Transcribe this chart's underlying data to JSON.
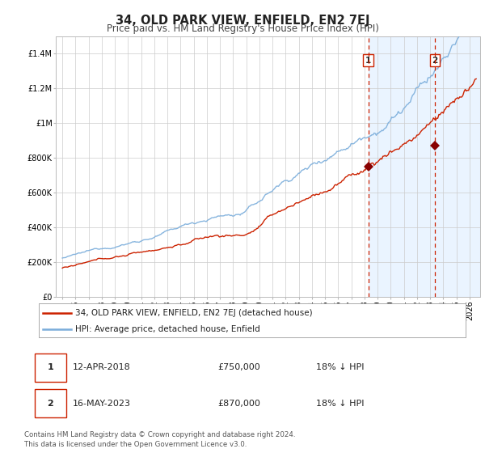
{
  "title": "34, OLD PARK VIEW, ENFIELD, EN2 7EJ",
  "subtitle": "Price paid vs. HM Land Registry's House Price Index (HPI)",
  "xlim": [
    1994.5,
    2026.8
  ],
  "ylim": [
    0,
    1500000
  ],
  "yticks": [
    0,
    200000,
    400000,
    600000,
    800000,
    1000000,
    1200000,
    1400000
  ],
  "ytick_labels": [
    "£0",
    "£200K",
    "£400K",
    "£600K",
    "£800K",
    "£1M",
    "£1.2M",
    "£1.4M"
  ],
  "xticks": [
    1995,
    1996,
    1997,
    1998,
    1999,
    2000,
    2001,
    2002,
    2003,
    2004,
    2005,
    2006,
    2007,
    2008,
    2009,
    2010,
    2011,
    2012,
    2013,
    2014,
    2015,
    2016,
    2017,
    2018,
    2019,
    2020,
    2021,
    2022,
    2023,
    2024,
    2025,
    2026
  ],
  "hpi_color": "#7aaddb",
  "price_color": "#cc2200",
  "marker_color": "#880000",
  "dashed_color": "#cc2200",
  "shade_color": "#ddeeff",
  "grid_color": "#cccccc",
  "sale1_x": 2018.28,
  "sale1_y": 750000,
  "sale1_label": "1",
  "sale2_x": 2023.37,
  "sale2_y": 870000,
  "sale2_label": "2",
  "legend_line1": "34, OLD PARK VIEW, ENFIELD, EN2 7EJ (detached house)",
  "legend_line2": "HPI: Average price, detached house, Enfield",
  "table_row1": [
    "1",
    "12-APR-2018",
    "£750,000",
    "18% ↓ HPI"
  ],
  "table_row2": [
    "2",
    "16-MAY-2023",
    "£870,000",
    "18% ↓ HPI"
  ],
  "footnote1": "Contains HM Land Registry data © Crown copyright and database right 2024.",
  "footnote2": "This data is licensed under the Open Government Licence v3.0.",
  "title_fontsize": 10.5,
  "subtitle_fontsize": 8.5,
  "tick_fontsize": 7,
  "legend_fontsize": 7.5,
  "table_fontsize": 8
}
